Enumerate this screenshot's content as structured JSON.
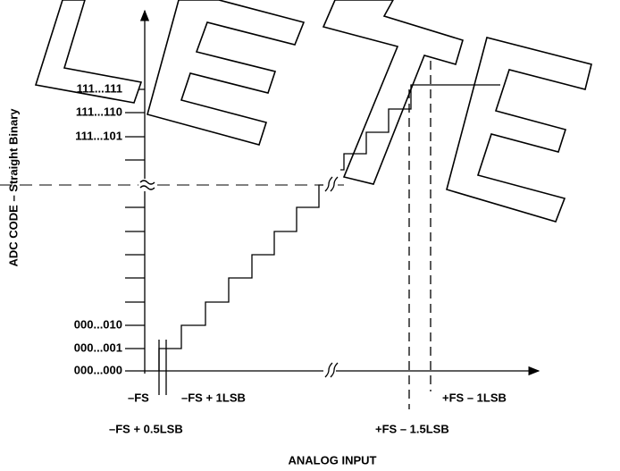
{
  "y_axis_label": "ADC CODE – Straight Binary",
  "x_axis_label": "ANALOG INPUT",
  "codes": [
    "111...111",
    "111...110",
    "111...101",
    "000...010",
    "000...001",
    "000...000"
  ],
  "x_labels": [
    "–FS",
    "–FS + 1LSB",
    "–FS + 0.5LSB",
    "+FS – 1.5LSB",
    "+FS – 1LSB"
  ]
}
